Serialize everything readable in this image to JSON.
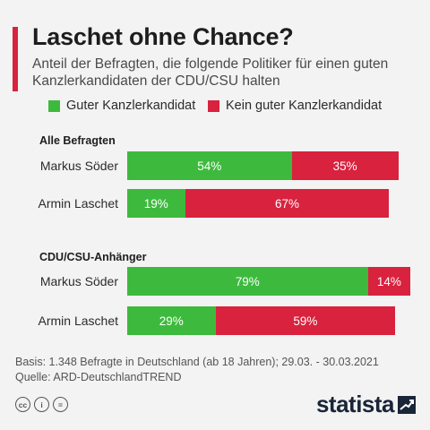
{
  "header": {
    "title": "Laschet ohne Chance?",
    "subtitle": "Anteil der Befragten, die folgende Politiker für einen guten Kanzlerkandidaten der CDU/CSU halten"
  },
  "colors": {
    "accent": "#d8223e",
    "good": "#3dba3d",
    "bad": "#d8223e",
    "brand": "#1a2538"
  },
  "chart_data": {
    "type": "bar",
    "orientation": "horizontal",
    "stacked": true,
    "legend": [
      "Guter Kanzlerkandidat",
      "Kein guter Kanzlerkandidat"
    ],
    "legend_position": "top",
    "unit": "%",
    "groups": [
      {
        "label": "Alle Befragten",
        "rows": [
          {
            "label": "Markus Söder",
            "good": 54,
            "bad": 35,
            "good_text": "54%",
            "bad_text": "35%"
          },
          {
            "label": "Armin Laschet",
            "good": 19,
            "bad": 67,
            "good_text": "19%",
            "bad_text": "67%"
          }
        ]
      },
      {
        "label": "CDU/CSU-Anhänger",
        "rows": [
          {
            "label": "Markus Söder",
            "good": 79,
            "bad": 14,
            "good_text": "79%",
            "bad_text": "14%"
          },
          {
            "label": "Armin Laschet",
            "good": 29,
            "bad": 59,
            "good_text": "29%",
            "bad_text": "59%"
          }
        ]
      }
    ]
  },
  "footer": {
    "basis": "Basis: 1.348 Befragte in Deutschland (ab 18 Jahren); 29.03. - 30.03.2021",
    "source": "Quelle: ARD-DeutschlandTREND",
    "license_icons": [
      {
        "icon": "cc-icon",
        "text": "cc"
      },
      {
        "icon": "attribution-icon",
        "text": "i"
      },
      {
        "icon": "no-derivatives-icon",
        "text": "="
      }
    ],
    "brand": "statista"
  }
}
